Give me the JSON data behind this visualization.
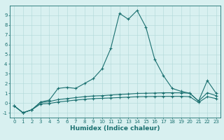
{
  "xlabel": "Humidex (Indice chaleur)",
  "ylabel": "",
  "x": [
    0,
    1,
    2,
    3,
    4,
    5,
    6,
    7,
    8,
    9,
    10,
    11,
    12,
    13,
    14,
    15,
    16,
    17,
    18,
    19,
    20,
    21,
    22,
    23
  ],
  "line1": [
    -0.3,
    -1.0,
    -0.7,
    0.1,
    0.3,
    1.5,
    1.6,
    1.5,
    2.0,
    2.5,
    3.5,
    5.6,
    9.2,
    8.6,
    9.5,
    7.8,
    4.5,
    2.8,
    1.5,
    1.2,
    1.0,
    0.2,
    2.3,
    1.0
  ],
  "line2": [
    -0.3,
    -1.0,
    -0.7,
    0.05,
    0.15,
    0.35,
    0.45,
    0.55,
    0.65,
    0.72,
    0.75,
    0.82,
    0.88,
    0.92,
    0.98,
    1.0,
    1.02,
    1.05,
    1.05,
    1.05,
    1.0,
    0.2,
    1.05,
    0.75
  ],
  "line3": [
    -0.3,
    -1.0,
    -0.7,
    -0.1,
    -0.05,
    0.1,
    0.2,
    0.3,
    0.38,
    0.45,
    0.48,
    0.52,
    0.56,
    0.6,
    0.64,
    0.66,
    0.67,
    0.68,
    0.68,
    0.68,
    0.65,
    0.05,
    0.65,
    0.45
  ],
  "line_color": "#1a7070",
  "bg_color": "#d8f0f0",
  "grid_color": "#b0d8d8",
  "ylim": [
    -1.5,
    10.0
  ],
  "xlim": [
    -0.5,
    23.5
  ],
  "yticks": [
    -1,
    0,
    1,
    2,
    3,
    4,
    5,
    6,
    7,
    8,
    9
  ],
  "xticks": [
    0,
    1,
    2,
    3,
    4,
    5,
    6,
    7,
    8,
    9,
    10,
    11,
    12,
    13,
    14,
    15,
    16,
    17,
    18,
    19,
    20,
    21,
    22,
    23
  ],
  "marker": "+",
  "markersize": 3,
  "linewidth": 0.8,
  "tick_fontsize": 5.0,
  "xlabel_fontsize": 6.5
}
